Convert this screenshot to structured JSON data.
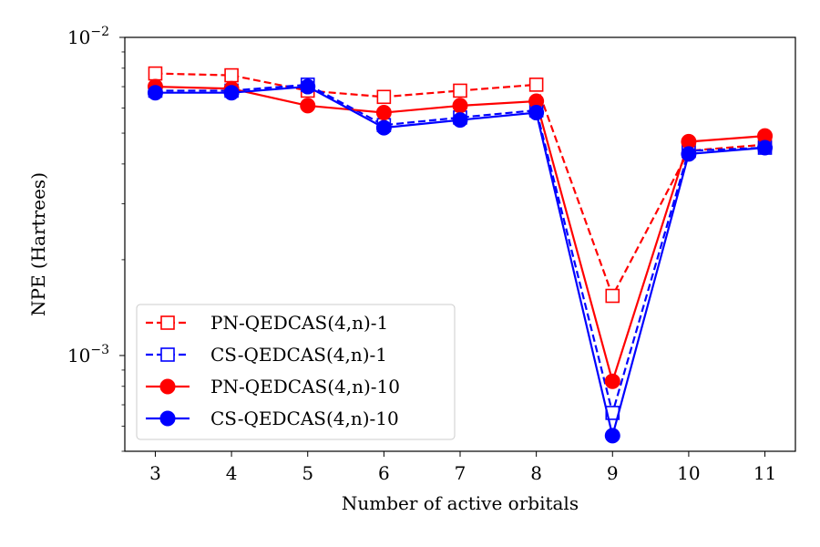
{
  "chart_data": {
    "type": "line",
    "title": "",
    "xlabel": "Number of active orbitals",
    "ylabel": "NPE (Hartrees)",
    "y_scale": "log",
    "xlim": [
      2.6,
      11.4
    ],
    "ylim": [
      0.0005,
      0.01
    ],
    "x_ticks": [
      3,
      4,
      5,
      6,
      7,
      8,
      9,
      10,
      11
    ],
    "y_ticks": [
      {
        "value": 0.001,
        "base": "10",
        "exp": "−3"
      },
      {
        "value": 0.01,
        "base": "10",
        "exp": "−2"
      }
    ],
    "grid": false,
    "legend_position": "lower-left",
    "x": [
      3,
      4,
      5,
      6,
      7,
      8,
      9,
      10,
      11
    ],
    "series": [
      {
        "name": "PN-QEDCAS(4,n)-1",
        "color": "#ff0000",
        "line": "dashed",
        "marker": "open-square",
        "values": [
          0.0077,
          0.0076,
          0.0068,
          0.0065,
          0.0068,
          0.0071,
          0.00154,
          0.0044,
          0.0046
        ]
      },
      {
        "name": "CS-QEDCAS(4,n)-1",
        "color": "#0000ff",
        "line": "dashed",
        "marker": "open-square",
        "values": [
          0.0068,
          0.0068,
          0.0071,
          0.0053,
          0.0056,
          0.0059,
          0.00066,
          0.0044,
          0.0045
        ]
      },
      {
        "name": "PN-QEDCAS(4,n)-10",
        "color": "#ff0000",
        "line": "solid",
        "marker": "filled-circle",
        "values": [
          0.007,
          0.0069,
          0.0061,
          0.0058,
          0.0061,
          0.0063,
          0.00083,
          0.0047,
          0.0049
        ]
      },
      {
        "name": "CS-QEDCAS(4,n)-10",
        "color": "#0000ff",
        "line": "solid",
        "marker": "filled-circle",
        "values": [
          0.0067,
          0.0067,
          0.007,
          0.0052,
          0.0055,
          0.0058,
          0.00056,
          0.0043,
          0.0045
        ]
      }
    ]
  }
}
